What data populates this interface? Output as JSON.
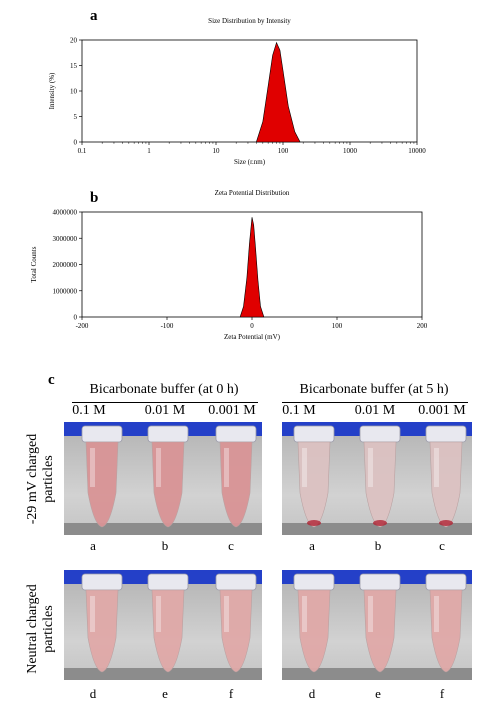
{
  "colors": {
    "peak_fill": "#e00000",
    "tube_blue": "#2440c8",
    "photo_bg": "#c9c9c9",
    "ledge": "#8c8c8c",
    "charged_liquid": "#d99496",
    "neutral_liquid": "#e0a9a8",
    "charged_5h_liquid": "#dcc2c2",
    "sediment": "#b02434"
  },
  "chart_data": [
    {
      "type": "area",
      "panel": "a",
      "title": "Size Distribution by Intensity",
      "xlabel": "Size (r.nm)",
      "ylabel": "Intensity (%)",
      "xscale": "log",
      "xlim": [
        0.1,
        10000
      ],
      "ylim": [
        0,
        20
      ],
      "x_ticks": [
        "0.1",
        "1",
        "10",
        "100",
        "1000",
        "10000"
      ],
      "y_ticks": [
        "0",
        "5",
        "10",
        "15",
        "20"
      ],
      "x": [
        40,
        50,
        60,
        70,
        80,
        90,
        100,
        120,
        150,
        180
      ],
      "y": [
        0,
        4,
        11,
        17,
        19.5,
        18,
        14,
        7,
        2,
        0
      ]
    },
    {
      "type": "area",
      "panel": "b",
      "title": "Zeta Potential Distribution",
      "xlabel": "Zeta Potential (mV)",
      "ylabel": "Total Counts",
      "xlim": [
        -200,
        200
      ],
      "ylim": [
        0,
        4000000
      ],
      "x_ticks": [
        "-200",
        "-100",
        "0",
        "100",
        "200"
      ],
      "y_ticks": [
        "0",
        "1000000",
        "2000000",
        "3000000",
        "4000000"
      ],
      "x": [
        -14,
        -10,
        -6,
        -3,
        0,
        2,
        4,
        7,
        10,
        14
      ],
      "y": [
        0,
        400000,
        1500000,
        2800000,
        3800000,
        3500000,
        2700000,
        1400000,
        400000,
        0
      ]
    }
  ],
  "panel_c": {
    "letter": "c",
    "groups": [
      {
        "title": "Bicarbonate buffer (at 0 h)",
        "concentrations": [
          "0.1 M",
          "0.01 M",
          "0.001 M"
        ]
      },
      {
        "title": "Bicarbonate buffer (at 5 h)",
        "concentrations": [
          "0.1 M",
          "0.01 M",
          "0.001 M"
        ]
      }
    ],
    "rows": [
      {
        "label_line1": "-29 mV charged",
        "label_line2": "particles",
        "tube_letters": [
          "a",
          "b",
          "c"
        ]
      },
      {
        "label_line1": "Neutral charged",
        "label_line2": "particles",
        "tube_letters": [
          "d",
          "e",
          "f"
        ]
      }
    ]
  }
}
